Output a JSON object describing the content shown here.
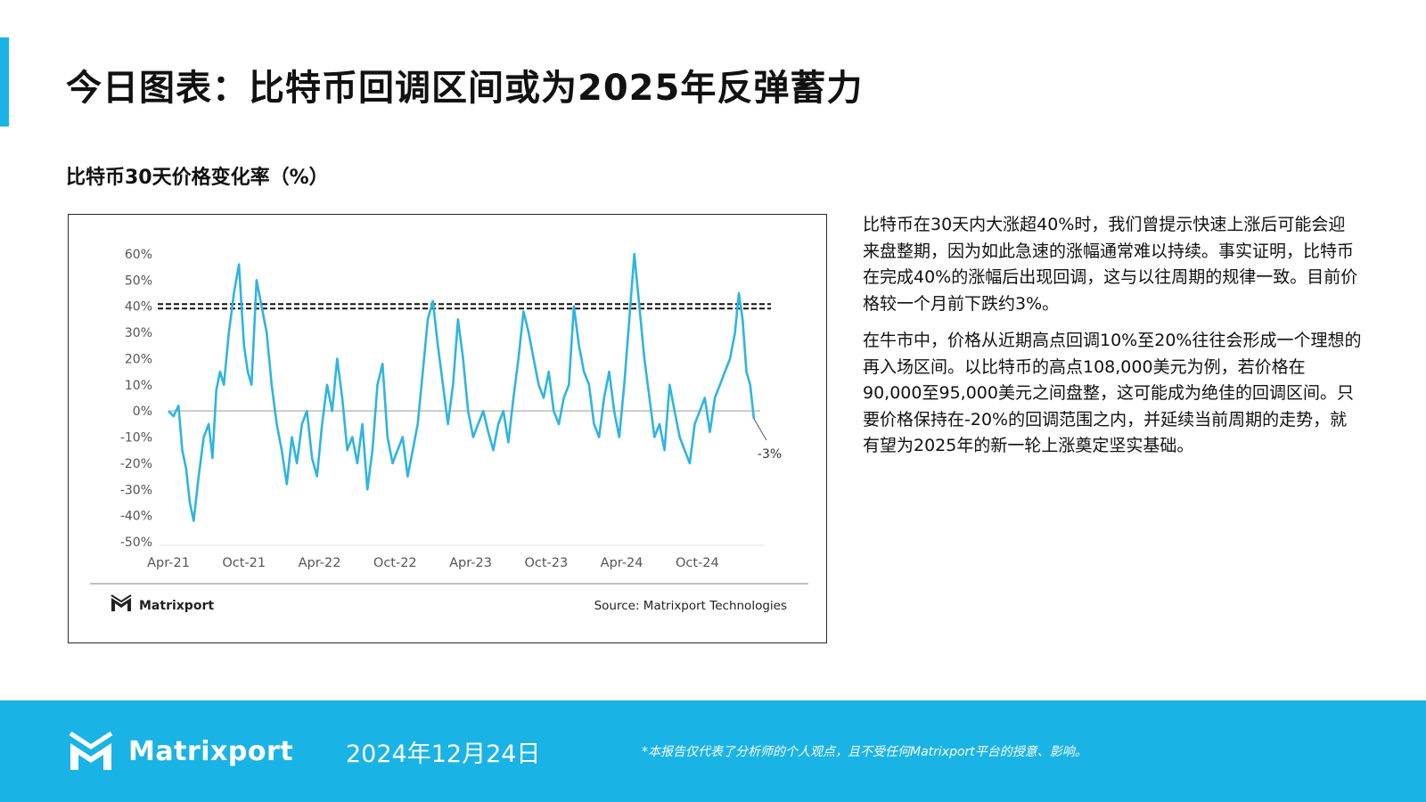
{
  "header": {
    "title": "今日图表：比特币回调区间或为2025年反弹蓄力",
    "accent_color": "#1ab3e6"
  },
  "chart_title": "比特币30天价格变化率（%）",
  "chart_data": {
    "type": "line",
    "title": "",
    "xlabel": "",
    "ylabel": "",
    "y_tick_labels": [
      "60%",
      "50%",
      "40%",
      "30%",
      "20%",
      "10%",
      "0%",
      "-10%",
      "-20%",
      "-30%",
      "-40%",
      "-50%"
    ],
    "x_tick_labels": [
      "Apr-21",
      "Oct-21",
      "Apr-22",
      "Oct-22",
      "Apr-23",
      "Oct-23",
      "Apr-24",
      "Oct-24"
    ],
    "x_tick_months": [
      0,
      6,
      12,
      18,
      24,
      30,
      36,
      42
    ],
    "ylim": [
      -50,
      60
    ],
    "xlim_months": [
      0,
      47
    ],
    "grid": false,
    "threshold_line": {
      "value": 40,
      "style": "dashed"
    },
    "zero_line": {
      "value": 0
    },
    "line_color": "#2fb4e2",
    "series": [
      {
        "x_months": [
          0,
          0.4,
          0.8,
          1.1,
          1.4,
          1.7,
          2.0,
          2.4,
          2.8,
          3.2,
          3.5,
          3.8,
          4.1,
          4.4,
          4.8,
          5.2,
          5.6,
          6.0,
          6.3,
          6.6,
          7.0,
          7.4,
          7.8,
          8.2,
          8.6,
          9.0,
          9.4,
          9.8,
          10.2,
          10.6,
          11.0,
          11.4,
          11.8,
          12.2,
          12.6,
          13.0,
          13.4,
          13.8,
          14.2,
          14.6,
          15.0,
          15.4,
          15.8,
          16.2,
          16.6,
          17.0,
          17.4,
          17.8,
          18.2,
          18.6,
          19.0,
          19.4,
          19.8,
          20.2,
          20.6,
          21.0,
          21.4,
          21.8,
          22.2,
          22.6,
          23.0,
          23.4,
          23.8,
          24.2,
          24.6,
          25.0,
          25.4,
          25.8,
          26.2,
          26.6,
          27.0,
          27.4,
          27.8,
          28.2,
          28.6,
          29.0,
          29.4,
          29.8,
          30.2,
          30.6,
          31.0,
          31.4,
          31.8,
          32.2,
          32.6,
          33.0,
          33.4,
          33.8,
          34.2,
          34.6,
          35.0,
          35.4,
          35.8,
          36.2,
          36.6,
          37.0,
          37.4,
          37.8,
          38.2,
          38.6,
          39.0,
          39.4,
          39.8,
          40.2,
          40.6,
          41.0,
          41.4,
          41.8,
          42.2,
          42.6,
          43.0,
          43.4,
          43.8,
          44.2,
          44.6,
          45.0,
          45.3,
          45.6,
          45.9,
          46.2,
          46.5
        ],
        "values": [
          0,
          -2,
          2,
          -15,
          -22,
          -35,
          -42,
          -25,
          -10,
          -5,
          -18,
          8,
          15,
          10,
          30,
          45,
          56,
          25,
          15,
          10,
          50,
          40,
          30,
          10,
          -5,
          -15,
          -28,
          -10,
          -20,
          -5,
          0,
          -18,
          -25,
          -5,
          10,
          0,
          20,
          5,
          -15,
          -10,
          -20,
          -5,
          -30,
          -15,
          10,
          18,
          -10,
          -20,
          -15,
          -10,
          -25,
          -15,
          -5,
          15,
          35,
          42,
          25,
          10,
          -5,
          10,
          35,
          20,
          0,
          -10,
          -5,
          0,
          -8,
          -15,
          -5,
          0,
          -12,
          5,
          20,
          38,
          30,
          20,
          10,
          5,
          15,
          0,
          -5,
          5,
          10,
          40,
          25,
          15,
          10,
          -5,
          -10,
          5,
          15,
          0,
          -10,
          10,
          35,
          60,
          40,
          20,
          5,
          -10,
          -5,
          -15,
          10,
          0,
          -10,
          -15,
          -20,
          -5,
          0,
          5,
          -8,
          5,
          10,
          15,
          20,
          30,
          45,
          35,
          15,
          10,
          -3
        ],
        "end_label": "-3%"
      }
    ],
    "logo_text": "Matrixport",
    "source": "Source: Matrixport Technologies"
  },
  "commentary": {
    "p1": "比特币在30天内大涨超40%时，我们曾提示快速上涨后可能会迎来盘整期，因为如此急速的涨幅通常难以持续。事实证明，比特币在完成40%的涨幅后出现回调，这与以往周期的规律一致。目前价格较一个月前下跌约3%。",
    "p2": "在牛市中，价格从近期高点回调10%至20%往往会形成一个理想的再入场区间。以比特币的高点108,000美元为例，若价格在90,000至95,000美元之间盘整，这可能成为绝佳的回调区间。只要价格保持在-20%的回调范围之内，并延续当前周期的走势，就有望为2025年的新一轮上涨奠定坚实基础。"
  },
  "footer": {
    "logo_text": "Matrixport",
    "date": "2024年12月24日",
    "disclaimer": "*本报告仅代表了分析师的个人观点，且不受任何Matrixport平台的授意、影响。",
    "background_color": "#1ab3e6"
  }
}
